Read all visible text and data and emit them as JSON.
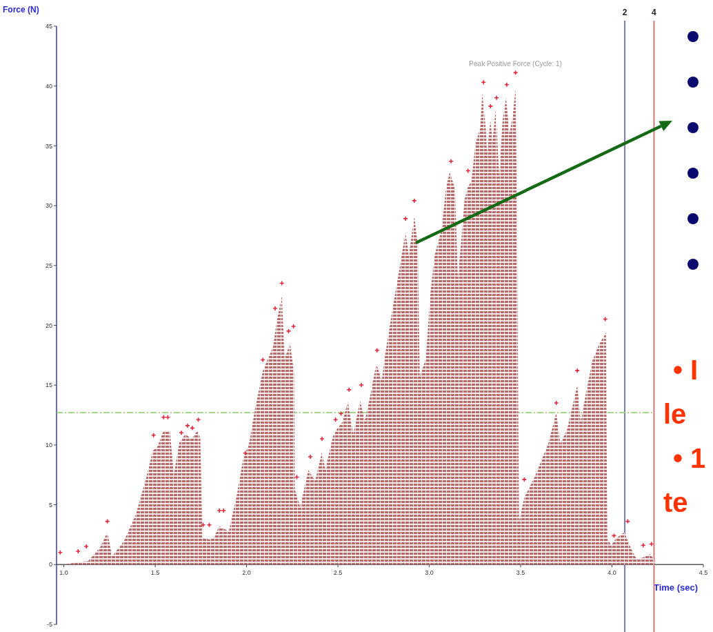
{
  "chart_data": {
    "type": "area",
    "xlabel": "Time (sec)",
    "ylabel": "Force (N)",
    "xlim": [
      0.96,
      4.5
    ],
    "xticks": [
      {
        "value": 1,
        "label": "1.0"
      },
      1.5,
      {
        "value": 2,
        "label": "2.0"
      },
      2.5,
      {
        "value": 3,
        "label": "3.0"
      },
      3.5,
      {
        "value": 4,
        "label": "4.0"
      },
      4.5
    ],
    "ylim": [
      -5,
      45
    ],
    "yticks": [
      -5,
      0,
      5,
      10,
      15,
      20,
      25,
      30,
      35,
      40,
      45
    ],
    "series": [
      {
        "color": "#b86a6a",
        "x": [
          1.0,
          1.078,
          1.134,
          1.197,
          1.238,
          1.264,
          1.327,
          1.394,
          1.45,
          1.487,
          1.513,
          1.546,
          1.58,
          1.602,
          1.632,
          1.665,
          1.699,
          1.732,
          1.747,
          1.758,
          1.796,
          1.818,
          1.851,
          1.874,
          1.903,
          1.948,
          1.981,
          2.015,
          2.045,
          2.089,
          2.145,
          2.164,
          2.193,
          2.208,
          2.238,
          2.26,
          2.264,
          2.294,
          2.338,
          2.375,
          2.413,
          2.431,
          2.472,
          2.498,
          2.524,
          2.554,
          2.584,
          2.621,
          2.647,
          2.677,
          2.71,
          2.74,
          2.758,
          2.796,
          2.833,
          2.87,
          2.888,
          2.918,
          2.937,
          2.948,
          2.981,
          3.007,
          3.03,
          3.067,
          3.093,
          3.112,
          3.141,
          3.156,
          3.175,
          3.193,
          3.212,
          3.23,
          3.253,
          3.279,
          3.29,
          3.309,
          3.316,
          3.335,
          3.346,
          3.364,
          3.383,
          3.401,
          3.42,
          3.439,
          3.457,
          3.472,
          3.48,
          3.491,
          3.52,
          3.576,
          3.651,
          3.695,
          3.717,
          3.755,
          3.81,
          3.829,
          3.855,
          3.892,
          3.929,
          3.967,
          3.974,
          3.996,
          4.022,
          4.067,
          4.097,
          4.115,
          4.134,
          4.171,
          4.208,
          4.227,
          4.234
        ],
        "values": [
          0,
          0.2,
          0.3,
          1.4,
          2.7,
          0.7,
          1.9,
          4.2,
          7.2,
          9.5,
          9.9,
          11.2,
          11.2,
          7.5,
          10.2,
          10.9,
          10.5,
          11.2,
          10.5,
          2.3,
          2.1,
          2.2,
          3.2,
          3.0,
          2.8,
          5.9,
          8.8,
          10.2,
          12.9,
          16.2,
          18.2,
          20.2,
          22.5,
          17.2,
          18.5,
          16.0,
          6.3,
          4.8,
          7.9,
          7.0,
          9.4,
          7.9,
          10.7,
          11.4,
          11.9,
          13.6,
          10.9,
          13.7,
          12.0,
          14.1,
          16.8,
          15.4,
          17.5,
          21.1,
          24.4,
          27.8,
          25.8,
          29.1,
          26.7,
          15.7,
          17.2,
          22.8,
          25.9,
          28.0,
          31.6,
          32.8,
          31.4,
          24.0,
          27.1,
          30.5,
          31.6,
          32.0,
          35.2,
          36.5,
          39.4,
          36.5,
          34.5,
          37.1,
          35.4,
          38.1,
          32.4,
          37.1,
          39.0,
          36.0,
          37.5,
          39.8,
          29.3,
          3.6,
          5.6,
          7.3,
          10.1,
          12.7,
          10.1,
          11.3,
          15.0,
          11.9,
          14.1,
          17.0,
          18.4,
          19.4,
          2.2,
          1.6,
          2.2,
          2.7,
          1.6,
          1.0,
          0.5,
          0.6,
          0.9,
          0.5,
          0
        ]
      },
      {
        "type": "scatter",
        "color": "#e0283c",
        "marker": "cross",
        "x": [
          0.98,
          1.078,
          1.123,
          1.238,
          1.491,
          1.546,
          1.569,
          1.643,
          1.677,
          1.703,
          1.736,
          1.762,
          1.796,
          1.851,
          1.874,
          1.993,
          2.089,
          2.156,
          2.193,
          2.23,
          2.257,
          2.275,
          2.349,
          2.413,
          2.487,
          2.517,
          2.561,
          2.628,
          2.714,
          2.87,
          2.918,
          3.119,
          3.212,
          3.297,
          3.335,
          3.368,
          3.424,
          3.472,
          3.52,
          3.695,
          3.81,
          3.963,
          4.011,
          4.086,
          4.171,
          4.216
        ],
        "values": [
          0.9,
          1.0,
          1.4,
          3.5,
          10.7,
          12.2,
          12.2,
          10.9,
          11.5,
          11.3,
          12.0,
          3.2,
          3.2,
          4.4,
          4.4,
          9.2,
          17.0,
          21.3,
          23.4,
          19.4,
          19.8,
          7.2,
          8.9,
          10.4,
          12.0,
          12.5,
          14.5,
          14.9,
          17.8,
          28.8,
          30.3,
          33.6,
          32.8,
          40.2,
          38.2,
          38.9,
          40.0,
          41.0,
          7.0,
          13.4,
          16.1,
          20.4,
          2.3,
          3.5,
          1.5,
          1.6
        ]
      }
    ],
    "ref_lines": [
      {
        "axis": "x",
        "value": 4.07,
        "color": "#7b7bb5"
      },
      {
        "axis": "x",
        "value": 4.23,
        "color": "#cc7b7b"
      },
      {
        "axis": "y",
        "value": 12.7,
        "color": "#88cc66",
        "line_style": "dashed"
      }
    ],
    "annotations": [
      {
        "text": "Peak Positive Force (Cycle: 1)",
        "x": 3.472,
        "y": 39.8
      },
      "2",
      "4",
      "• I",
      "le",
      "• 1",
      "te"
    ]
  }
}
